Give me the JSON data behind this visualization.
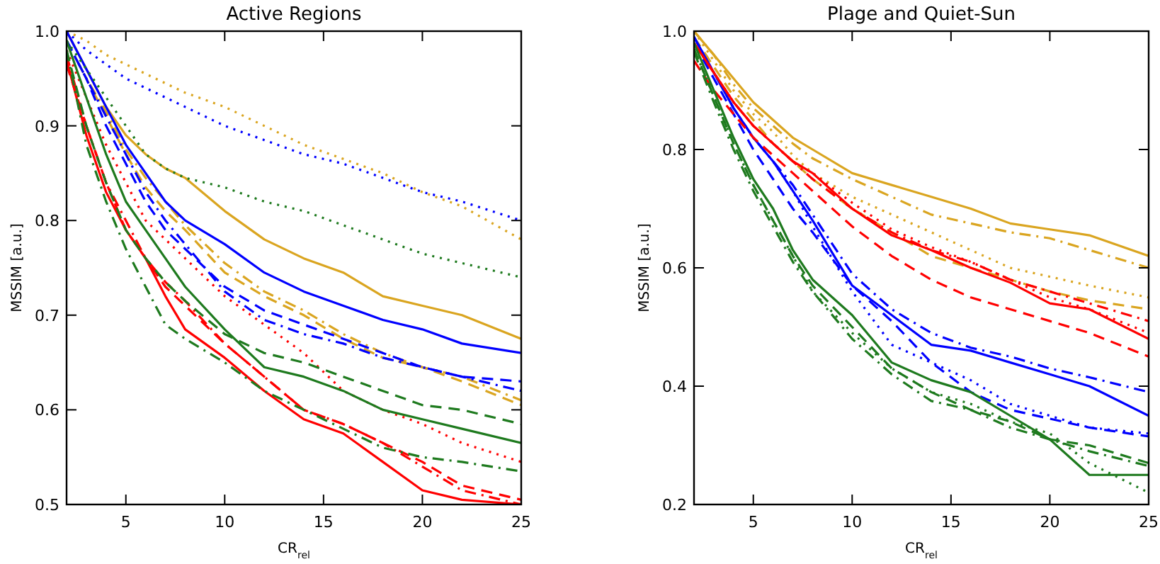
{
  "chart_data": [
    {
      "type": "line",
      "title": "Active Regions",
      "xlabel": "CR$_{rel}$",
      "ylabel": "MSSIM [a.u.]",
      "xlim": [
        2,
        25
      ],
      "xticks": [
        5,
        10,
        15,
        20,
        25
      ],
      "ylim": [
        0.5,
        1.0
      ],
      "yticks": [
        {
          "value": 0.5,
          "label": "0.5"
        },
        {
          "value": 0.6,
          "label": "0.6"
        },
        {
          "value": 0.7,
          "label": "0.7"
        },
        {
          "value": 0.8,
          "label": "0.8"
        },
        {
          "value": 0.9,
          "label": "0.9"
        },
        {
          "value": 1.0,
          "label": "1.0"
        }
      ],
      "grid": false,
      "marker": "none",
      "x": [
        2,
        3,
        4,
        5,
        6,
        7,
        8,
        10,
        12,
        14,
        16,
        18,
        20,
        22,
        25
      ],
      "series": [
        {
          "color": "#daa520",
          "line_style": "solid",
          "values": [
            1.0,
            0.96,
            0.92,
            0.89,
            0.87,
            0.855,
            0.845,
            0.81,
            0.78,
            0.76,
            0.745,
            0.72,
            0.71,
            0.7,
            0.675
          ]
        },
        {
          "color": "#daa520",
          "line_style": "dotted",
          "values": [
            1.0,
            0.99,
            0.975,
            0.965,
            0.955,
            0.945,
            0.935,
            0.92,
            0.9,
            0.88,
            0.865,
            0.85,
            0.83,
            0.815,
            0.78
          ]
        },
        {
          "color": "#daa520",
          "line_style": "dashed",
          "values": [
            0.99,
            0.95,
            0.91,
            0.87,
            0.835,
            0.81,
            0.79,
            0.745,
            0.72,
            0.7,
            0.675,
            0.655,
            0.645,
            0.63,
            0.605
          ]
        },
        {
          "color": "#daa520",
          "line_style": "dashdot",
          "values": [
            0.99,
            0.95,
            0.915,
            0.875,
            0.845,
            0.82,
            0.795,
            0.755,
            0.725,
            0.705,
            0.68,
            0.66,
            0.645,
            0.635,
            0.61
          ]
        },
        {
          "color": "#0000ff",
          "line_style": "solid",
          "values": [
            1.0,
            0.96,
            0.92,
            0.88,
            0.85,
            0.82,
            0.8,
            0.775,
            0.745,
            0.725,
            0.71,
            0.695,
            0.685,
            0.67,
            0.66
          ]
        },
        {
          "color": "#0000ff",
          "line_style": "dotted",
          "values": [
            1.0,
            0.98,
            0.965,
            0.95,
            0.94,
            0.93,
            0.92,
            0.9,
            0.885,
            0.87,
            0.86,
            0.845,
            0.83,
            0.82,
            0.8
          ]
        },
        {
          "color": "#0000ff",
          "line_style": "dashed",
          "values": [
            0.99,
            0.95,
            0.9,
            0.86,
            0.82,
            0.79,
            0.77,
            0.73,
            0.705,
            0.69,
            0.675,
            0.66,
            0.645,
            0.635,
            0.63
          ]
        },
        {
          "color": "#0000ff",
          "line_style": "dashdot",
          "values": [
            0.99,
            0.95,
            0.91,
            0.87,
            0.83,
            0.8,
            0.775,
            0.725,
            0.695,
            0.68,
            0.67,
            0.655,
            0.645,
            0.635,
            0.62
          ]
        },
        {
          "color": "#ff0000",
          "line_style": "solid",
          "values": [
            0.97,
            0.89,
            0.83,
            0.79,
            0.76,
            0.72,
            0.685,
            0.655,
            0.62,
            0.59,
            0.575,
            0.545,
            0.515,
            0.505,
            0.5
          ]
        },
        {
          "color": "#ff0000",
          "line_style": "dotted",
          "values": [
            0.98,
            0.93,
            0.88,
            0.84,
            0.8,
            0.78,
            0.76,
            0.72,
            0.69,
            0.66,
            0.62,
            0.6,
            0.585,
            0.565,
            0.545
          ]
        },
        {
          "color": "#ff0000",
          "line_style": "dashed",
          "values": [
            0.965,
            0.9,
            0.84,
            0.79,
            0.76,
            0.73,
            0.71,
            0.67,
            0.635,
            0.6,
            0.585,
            0.565,
            0.545,
            0.52,
            0.505
          ]
        },
        {
          "color": "#ff0000",
          "line_style": "dashdot",
          "values": [
            0.975,
            0.9,
            0.84,
            0.8,
            0.76,
            0.735,
            0.715,
            0.67,
            0.635,
            0.6,
            0.585,
            0.565,
            0.54,
            0.515,
            0.5
          ]
        },
        {
          "color": "#1e7a1e",
          "line_style": "solid",
          "values": [
            0.99,
            0.93,
            0.87,
            0.82,
            0.79,
            0.76,
            0.73,
            0.685,
            0.645,
            0.635,
            0.62,
            0.6,
            0.59,
            0.58,
            0.565
          ]
        },
        {
          "color": "#1e7a1e",
          "line_style": "dotted",
          "values": [
            0.99,
            0.96,
            0.93,
            0.9,
            0.87,
            0.855,
            0.845,
            0.835,
            0.82,
            0.81,
            0.795,
            0.78,
            0.765,
            0.755,
            0.74
          ]
        },
        {
          "color": "#1e7a1e",
          "line_style": "dashed",
          "values": [
            0.98,
            0.9,
            0.84,
            0.79,
            0.76,
            0.735,
            0.715,
            0.68,
            0.66,
            0.65,
            0.635,
            0.62,
            0.605,
            0.6,
            0.585
          ]
        },
        {
          "color": "#1e7a1e",
          "line_style": "dashdot",
          "values": [
            0.98,
            0.88,
            0.82,
            0.77,
            0.73,
            0.69,
            0.675,
            0.65,
            0.62,
            0.6,
            0.58,
            0.56,
            0.55,
            0.545,
            0.535
          ]
        }
      ]
    },
    {
      "type": "line",
      "title": "Plage and Quiet-Sun",
      "xlabel": "CR$_{rel}$",
      "ylabel": "MSSIM [a.u.]",
      "xlim": [
        2,
        25
      ],
      "xticks": [
        5,
        10,
        15,
        20,
        25
      ],
      "ylim": [
        0.2,
        1.0
      ],
      "yticks": [
        {
          "value": 0.2,
          "label": "0.2"
        },
        {
          "value": 0.4,
          "label": "0.4"
        },
        {
          "value": 0.6,
          "label": "0.6"
        },
        {
          "value": 0.8,
          "label": "0.8"
        },
        {
          "value": 1.0,
          "label": "1.0"
        }
      ],
      "grid": false,
      "marker": "none",
      "x": [
        2,
        3,
        4,
        5,
        6,
        7,
        8,
        10,
        12,
        14,
        16,
        18,
        20,
        22,
        25
      ],
      "series": [
        {
          "color": "#daa520",
          "line_style": "solid",
          "values": [
            1.0,
            0.96,
            0.92,
            0.88,
            0.85,
            0.82,
            0.8,
            0.76,
            0.74,
            0.72,
            0.7,
            0.675,
            0.665,
            0.655,
            0.62
          ]
        },
        {
          "color": "#daa520",
          "line_style": "dotted",
          "values": [
            1.0,
            0.95,
            0.9,
            0.86,
            0.83,
            0.79,
            0.76,
            0.72,
            0.69,
            0.66,
            0.63,
            0.6,
            0.585,
            0.57,
            0.55
          ]
        },
        {
          "color": "#daa520",
          "line_style": "dashed",
          "values": [
            0.99,
            0.94,
            0.89,
            0.85,
            0.81,
            0.78,
            0.75,
            0.7,
            0.66,
            0.62,
            0.6,
            0.58,
            0.56,
            0.545,
            0.53
          ]
        },
        {
          "color": "#daa520",
          "line_style": "dashdot",
          "values": [
            1.0,
            0.96,
            0.91,
            0.87,
            0.84,
            0.81,
            0.785,
            0.75,
            0.72,
            0.69,
            0.675,
            0.66,
            0.65,
            0.63,
            0.6
          ]
        },
        {
          "color": "#0000ff",
          "line_style": "solid",
          "values": [
            0.99,
            0.93,
            0.87,
            0.82,
            0.78,
            0.73,
            0.68,
            0.57,
            0.52,
            0.47,
            0.46,
            0.44,
            0.42,
            0.4,
            0.35
          ]
        },
        {
          "color": "#0000ff",
          "line_style": "dotted",
          "values": [
            0.99,
            0.93,
            0.87,
            0.82,
            0.78,
            0.73,
            0.67,
            0.56,
            0.47,
            0.44,
            0.41,
            0.37,
            0.35,
            0.33,
            0.32
          ]
        },
        {
          "color": "#0000ff",
          "line_style": "dashed",
          "values": [
            0.98,
            0.92,
            0.86,
            0.8,
            0.75,
            0.7,
            0.66,
            0.57,
            0.51,
            0.44,
            0.39,
            0.36,
            0.345,
            0.33,
            0.315
          ]
        },
        {
          "color": "#0000ff",
          "line_style": "dashdot",
          "values": [
            0.99,
            0.93,
            0.87,
            0.82,
            0.78,
            0.74,
            0.69,
            0.59,
            0.53,
            0.49,
            0.465,
            0.45,
            0.43,
            0.415,
            0.39
          ]
        },
        {
          "color": "#ff0000",
          "line_style": "solid",
          "values": [
            0.98,
            0.93,
            0.88,
            0.84,
            0.81,
            0.78,
            0.76,
            0.7,
            0.655,
            0.63,
            0.6,
            0.575,
            0.54,
            0.53,
            0.48
          ]
        },
        {
          "color": "#ff0000",
          "line_style": "dotted",
          "values": [
            0.98,
            0.93,
            0.88,
            0.84,
            0.81,
            0.78,
            0.76,
            0.71,
            0.665,
            0.635,
            0.61,
            0.58,
            0.55,
            0.53,
            0.49
          ]
        },
        {
          "color": "#ff0000",
          "line_style": "dashed",
          "values": [
            0.95,
            0.9,
            0.86,
            0.82,
            0.79,
            0.76,
            0.73,
            0.67,
            0.62,
            0.58,
            0.55,
            0.53,
            0.51,
            0.49,
            0.45
          ]
        },
        {
          "color": "#ff0000",
          "line_style": "dashdot",
          "values": [
            0.98,
            0.93,
            0.88,
            0.84,
            0.81,
            0.78,
            0.75,
            0.7,
            0.66,
            0.63,
            0.61,
            0.58,
            0.56,
            0.54,
            0.51
          ]
        },
        {
          "color": "#1e7a1e",
          "line_style": "solid",
          "values": [
            0.98,
            0.9,
            0.82,
            0.75,
            0.7,
            0.63,
            0.58,
            0.52,
            0.44,
            0.41,
            0.39,
            0.35,
            0.31,
            0.25,
            0.25
          ]
        },
        {
          "color": "#1e7a1e",
          "line_style": "dotted",
          "values": [
            0.97,
            0.89,
            0.81,
            0.74,
            0.68,
            0.62,
            0.56,
            0.49,
            0.43,
            0.39,
            0.37,
            0.34,
            0.32,
            0.27,
            0.22
          ]
        },
        {
          "color": "#1e7a1e",
          "line_style": "dashed",
          "values": [
            0.97,
            0.89,
            0.81,
            0.74,
            0.68,
            0.62,
            0.57,
            0.5,
            0.43,
            0.39,
            0.36,
            0.34,
            0.31,
            0.3,
            0.27
          ]
        },
        {
          "color": "#1e7a1e",
          "line_style": "dashdot",
          "values": [
            0.965,
            0.88,
            0.8,
            0.73,
            0.67,
            0.61,
            0.56,
            0.48,
            0.42,
            0.375,
            0.36,
            0.33,
            0.31,
            0.29,
            0.265
          ]
        }
      ]
    }
  ]
}
